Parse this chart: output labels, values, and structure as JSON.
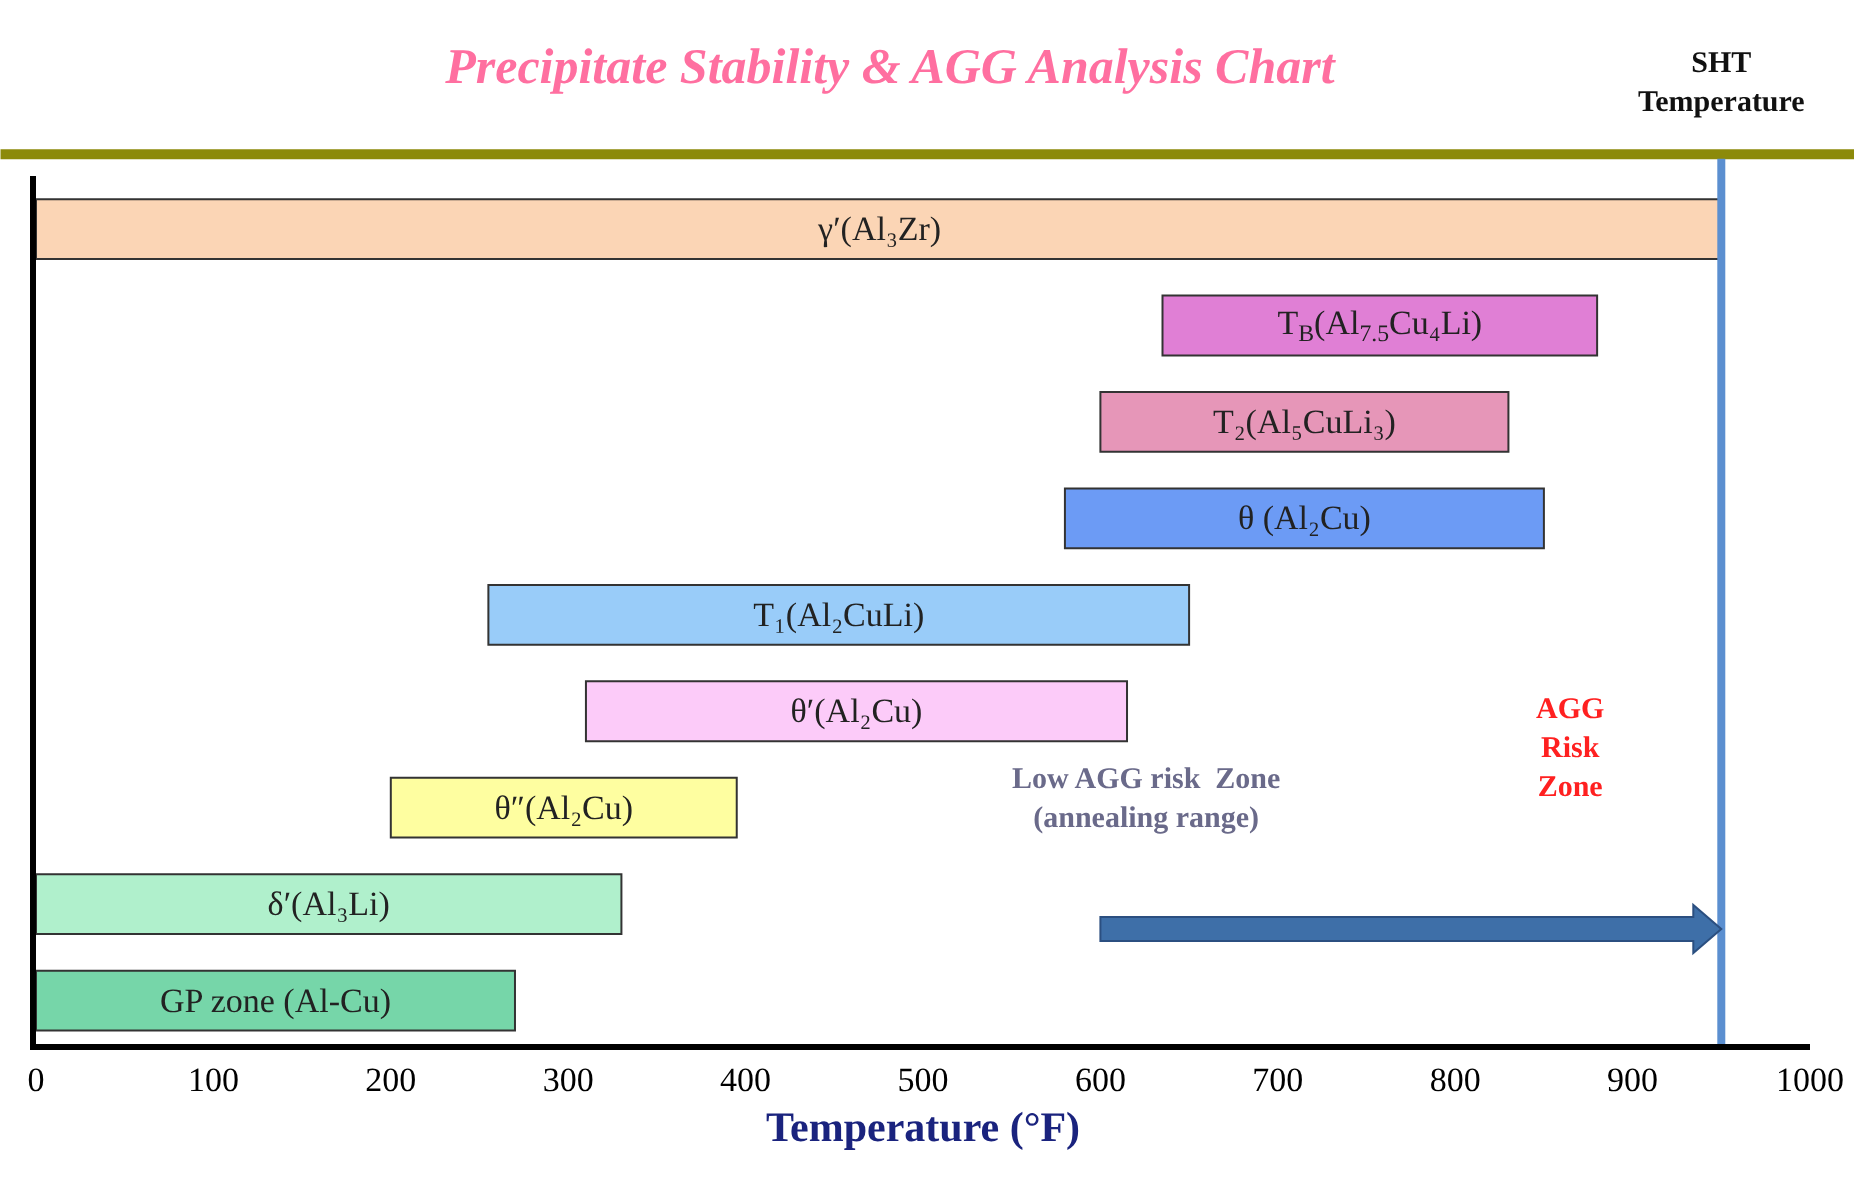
{
  "chart_data": {
    "type": "bar",
    "orientation": "horizontal",
    "title": "Precipitate Stability & AGG Analysis Chart",
    "xlabel": "Temperature (°F)",
    "categories": [
      "γ′(Al₃Zr)",
      "T$_{B}$(Al$_{7.5}$Cu₄Li)",
      "T₂(Al₅CuLi₃)",
      "θ (Al₂Cu)",
      "T₁(Al₂CuLi)",
      "θ′(Al₂Cu)",
      "θ″(Al₂Cu)",
      "δ′(Al₃Li)",
      "GP zone (Al-Cu)"
    ],
    "base": [
      0,
      635,
      600,
      580,
      255,
      310,
      200,
      0,
      0
    ],
    "values": [
      950,
      245,
      230,
      270,
      395,
      305,
      195,
      330,
      270
    ],
    "colors": [
      "#fbd5b5",
      "#e07fd5",
      "#e696b8",
      "#6c9bf5",
      "#99ccf9",
      "#fccbf9",
      "#fefea0",
      "#b0f0cc",
      "#76d6a9"
    ],
    "xlim": [
      0,
      1000
    ],
    "xticks": [
      0,
      100,
      200,
      300,
      400,
      500,
      600,
      700,
      800,
      900,
      1000
    ],
    "grid": false,
    "tick_labels": "x",
    "ref_lines": [
      {
        "axis": "x",
        "value": 950,
        "label": "SHT\nTemperature",
        "color": "#5b8fd0"
      }
    ],
    "annotations": [
      "Low AGG risk  Zone\n(annealing range)",
      "AGG\nRisk\nZone"
    ]
  }
}
